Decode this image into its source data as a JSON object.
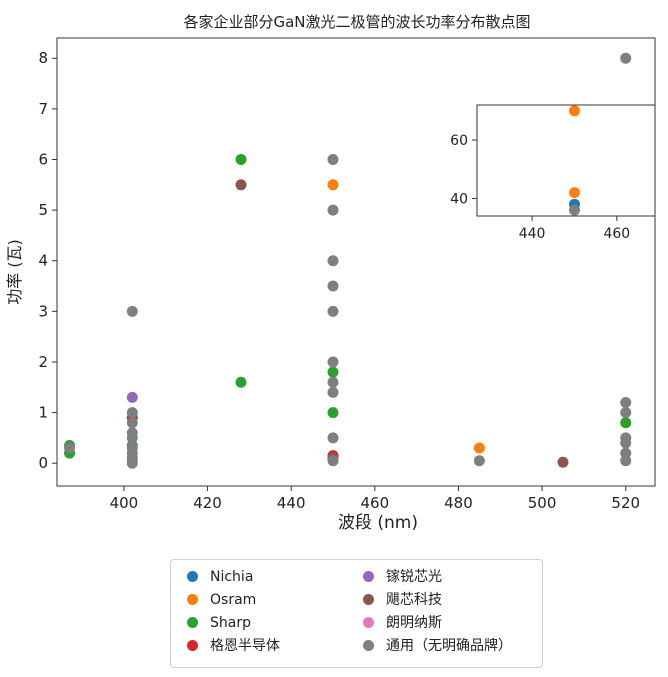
{
  "chart_data": [
    {
      "type": "scatter",
      "title": "各家企业部分GaN激光二极管的波长功率分布散点图",
      "xlabel": "波段 (nm)",
      "ylabel": "功率 (瓦)",
      "xlim": [
        384,
        527
      ],
      "ylim": [
        -0.45,
        8.4
      ],
      "xticks": [
        "400",
        "420",
        "440",
        "460",
        "480",
        "500",
        "520"
      ],
      "yticks": [
        "0",
        "1",
        "2",
        "3",
        "4",
        "5",
        "6",
        "7",
        "8"
      ],
      "grid": false,
      "legend_position": "bottom-outside",
      "series": [
        {
          "name": "Nichia",
          "color": "#1f77b4",
          "points": []
        },
        {
          "name": "Osram",
          "color": "#ff7f0e",
          "points": [
            [
              450,
              5.5
            ],
            [
              485,
              0.3
            ]
          ]
        },
        {
          "name": "Sharp",
          "color": "#2ca02c",
          "points": [
            [
              387,
              0.2
            ],
            [
              387,
              0.35
            ],
            [
              402,
              0.35
            ],
            [
              428,
              6.0
            ],
            [
              428,
              1.6
            ],
            [
              450,
              1.8
            ],
            [
              450,
              1.0
            ],
            [
              520,
              0.8
            ]
          ]
        },
        {
          "name": "格恩半导体",
          "color": "#d62728",
          "points": [
            [
              402,
              0.9
            ],
            [
              450,
              0.15
            ]
          ]
        },
        {
          "name": "镓锐芯光",
          "color": "#9467bd",
          "points": [
            [
              402,
              1.3
            ]
          ]
        },
        {
          "name": "飓芯科技",
          "color": "#8c564b",
          "points": [
            [
              428,
              5.5
            ],
            [
              450,
              0.1
            ],
            [
              505,
              0.02
            ]
          ]
        },
        {
          "name": "朗明纳斯",
          "color": "#e377c2",
          "points": []
        },
        {
          "name": "通用（无明确品牌）",
          "color": "#7f7f7f",
          "points": [
            [
              387,
              0.3
            ],
            [
              402,
              3.0
            ],
            [
              402,
              1.0
            ],
            [
              402,
              0.8
            ],
            [
              402,
              0.6
            ],
            [
              402,
              0.5
            ],
            [
              402,
              0.3
            ],
            [
              402,
              0.2
            ],
            [
              402,
              0.1
            ],
            [
              402,
              0.05
            ],
            [
              402,
              0.0
            ],
            [
              450,
              6.0
            ],
            [
              450,
              5.0
            ],
            [
              450,
              4.0
            ],
            [
              450,
              3.5
            ],
            [
              450,
              3.0
            ],
            [
              450,
              2.0
            ],
            [
              450,
              1.6
            ],
            [
              450,
              1.4
            ],
            [
              450,
              0.5
            ],
            [
              450,
              0.05
            ],
            [
              485,
              0.05
            ],
            [
              520,
              8.0
            ],
            [
              520,
              1.2
            ],
            [
              520,
              1.0
            ],
            [
              520,
              0.5
            ],
            [
              520,
              0.4
            ],
            [
              520,
              0.2
            ],
            [
              520,
              0.05
            ]
          ]
        }
      ]
    },
    {
      "type": "scatter",
      "title": "",
      "xlim": [
        427,
        469
      ],
      "ylim": [
        34,
        72
      ],
      "xticks": [
        "440",
        "460"
      ],
      "yticks": [
        "40",
        "60"
      ],
      "grid": false,
      "series": [
        {
          "name": "Nichia",
          "color": "#1f77b4",
          "points": [
            [
              450,
              38
            ]
          ]
        },
        {
          "name": "Osram",
          "color": "#ff7f0e",
          "points": [
            [
              450,
              70
            ],
            [
              450,
              42
            ]
          ]
        },
        {
          "name": "通用（无明确品牌）",
          "color": "#7f7f7f",
          "points": [
            [
              450,
              36
            ]
          ]
        }
      ]
    }
  ]
}
